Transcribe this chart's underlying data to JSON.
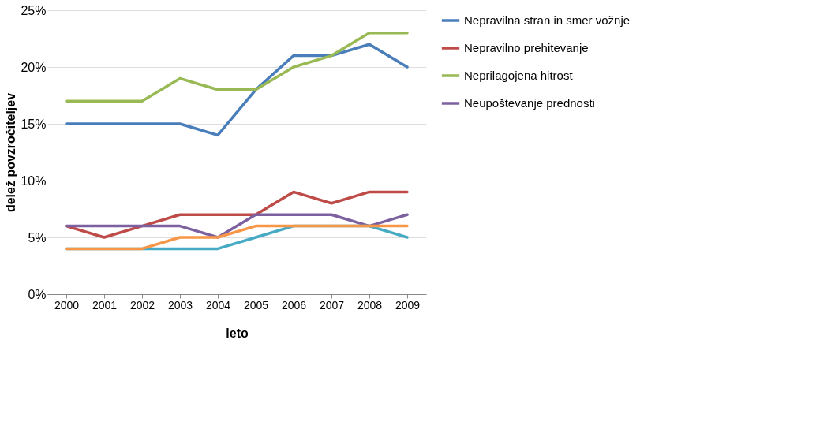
{
  "chart_data": {
    "type": "line",
    "xlabel": "leto",
    "ylabel": "delež povzročiteljev",
    "categories": [
      "2000",
      "2001",
      "2002",
      "2003",
      "2004",
      "2005",
      "2006",
      "2007",
      "2008",
      "2009"
    ],
    "ylim": [
      0,
      25
    ],
    "yticks": [
      {
        "value": 0,
        "label": "0%"
      },
      {
        "value": 5,
        "label": "5%"
      },
      {
        "value": 10,
        "label": "10%"
      },
      {
        "value": 15,
        "label": "15%"
      },
      {
        "value": 20,
        "label": "20%"
      },
      {
        "value": 25,
        "label": "25%"
      }
    ],
    "grid": "y",
    "legend": "right",
    "marker": "none",
    "line_style": "solid",
    "series": [
      {
        "name": "Nepravilna stran in smer vožnje",
        "color": "#4a7ebb",
        "values": [
          15,
          15,
          15,
          15,
          14,
          18,
          21,
          21,
          22,
          20
        ]
      },
      {
        "name": "Nepravilno prehitevanje",
        "color": "#be4b48",
        "values": [
          6,
          5,
          6,
          7,
          7,
          7,
          9,
          8,
          9,
          9
        ]
      },
      {
        "name": "Neprilagojena hitrost",
        "color": "#98b954",
        "values": [
          17,
          17,
          17,
          19,
          18,
          18,
          20,
          21,
          23,
          23
        ]
      },
      {
        "name": "Neupoštevanje prednosti",
        "color": "#7d60a0",
        "values": [
          6,
          6,
          6,
          6,
          5,
          7,
          7,
          7,
          6,
          7
        ]
      },
      {
        "color": "#46aac5",
        "values": [
          4,
          4,
          4,
          4,
          4,
          5,
          6,
          6,
          6,
          5
        ]
      },
      {
        "color": "#f79646",
        "values": [
          4,
          4,
          4,
          5,
          5,
          6,
          6,
          6,
          6,
          6
        ]
      }
    ]
  }
}
